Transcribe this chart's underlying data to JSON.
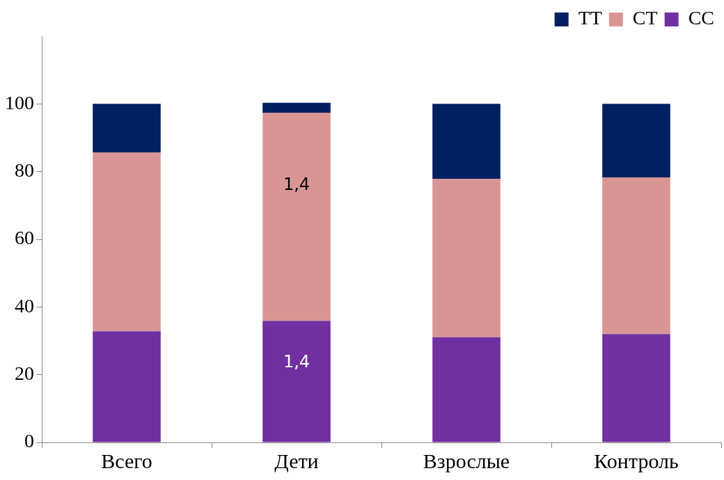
{
  "chart_data": {
    "type": "bar",
    "stacked": true,
    "categories": [
      "Всего",
      "Дети",
      "Взрослые",
      "Контроль"
    ],
    "series": [
      {
        "name": "CC",
        "color": "#7030a0",
        "values": [
          32.8,
          35.9,
          31.1,
          32.0
        ]
      },
      {
        "name": "CT",
        "color": "#d99594",
        "values": [
          52.9,
          61.5,
          46.8,
          46.3
        ]
      },
      {
        "name": "TT",
        "color": "#002060",
        "values": [
          14.3,
          2.9,
          22.1,
          21.7
        ]
      }
    ],
    "ylim": [
      0,
      120
    ],
    "yticks": [
      0,
      20,
      40,
      60,
      80,
      100
    ],
    "grid": false,
    "legend": "top right",
    "annotations": [
      "1,4",
      "1,4"
    ]
  }
}
